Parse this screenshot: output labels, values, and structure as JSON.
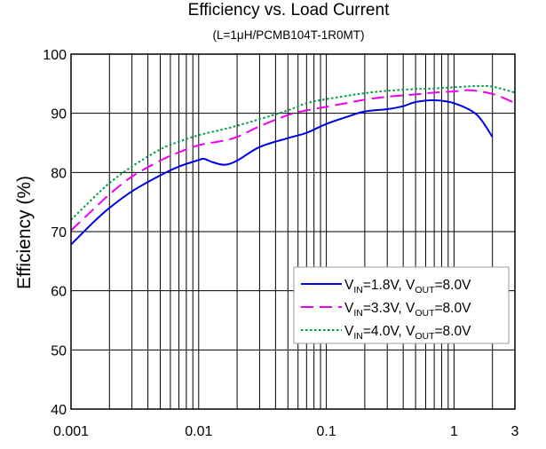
{
  "chart_data": {
    "type": "line",
    "title": "Efficiency vs. Load Current",
    "subtitle": "(L=1μH/PCMB104T-1R0MT)",
    "xlabel": "",
    "ylabel": "Efficiency (%)",
    "x_scale": "log",
    "xlim": [
      0.001,
      3
    ],
    "ylim": [
      40,
      100
    ],
    "grid": true,
    "x_ticks": [
      {
        "value": 0.001,
        "label": "0.001"
      },
      {
        "value": 0.01,
        "label": "0.01"
      },
      {
        "value": 0.1,
        "label": "0.1"
      },
      {
        "value": 1,
        "label": "1"
      },
      {
        "value": 3,
        "label": "3"
      }
    ],
    "y_ticks": [
      {
        "value": 40,
        "label": "40"
      },
      {
        "value": 50,
        "label": "50"
      },
      {
        "value": 60,
        "label": "60"
      },
      {
        "value": 70,
        "label": "70"
      },
      {
        "value": 80,
        "label": "80"
      },
      {
        "value": 90,
        "label": "90"
      },
      {
        "value": 100,
        "label": "100"
      }
    ],
    "legend_position": "bottom-right",
    "series": [
      {
        "name": "VIN=1.8V, VOUT=8.0V",
        "legend": {
          "a": "V",
          "a_sub": "IN",
          "b": "=1.8V, V",
          "b_sub": "OUT",
          "c": "=8.0V"
        },
        "color": "#0000e6",
        "style": "solid",
        "points": [
          [
            0.001,
            67.8
          ],
          [
            0.0015,
            71.6
          ],
          [
            0.002,
            74.0
          ],
          [
            0.003,
            76.8
          ],
          [
            0.005,
            79.5
          ],
          [
            0.007,
            81.0
          ],
          [
            0.01,
            82.1
          ],
          [
            0.011,
            82.3
          ],
          [
            0.013,
            81.7
          ],
          [
            0.016,
            81.3
          ],
          [
            0.02,
            82.0
          ],
          [
            0.03,
            84.3
          ],
          [
            0.05,
            85.8
          ],
          [
            0.07,
            86.7
          ],
          [
            0.1,
            88.2
          ],
          [
            0.15,
            89.5
          ],
          [
            0.2,
            90.3
          ],
          [
            0.3,
            90.7
          ],
          [
            0.4,
            91.2
          ],
          [
            0.5,
            91.9
          ],
          [
            0.7,
            92.2
          ],
          [
            1.0,
            91.7
          ],
          [
            1.5,
            89.8
          ],
          [
            2.0,
            86.0
          ]
        ]
      },
      {
        "name": "VIN=3.3V, VOUT=8.0V",
        "legend": {
          "a": "V",
          "a_sub": "IN",
          "b": "=3.3V, V",
          "b_sub": "OUT",
          "c": "=8.0V"
        },
        "color": "#ee00ee",
        "style": "dashed",
        "points": [
          [
            0.001,
            70.2
          ],
          [
            0.0015,
            73.8
          ],
          [
            0.002,
            76.3
          ],
          [
            0.003,
            79.3
          ],
          [
            0.005,
            82.0
          ],
          [
            0.007,
            83.4
          ],
          [
            0.01,
            84.6
          ],
          [
            0.015,
            85.3
          ],
          [
            0.02,
            86.0
          ],
          [
            0.03,
            87.8
          ],
          [
            0.05,
            89.7
          ],
          [
            0.07,
            90.5
          ],
          [
            0.1,
            91.1
          ],
          [
            0.15,
            91.8
          ],
          [
            0.2,
            92.3
          ],
          [
            0.3,
            92.8
          ],
          [
            0.5,
            93.2
          ],
          [
            0.7,
            93.5
          ],
          [
            1.0,
            93.7
          ],
          [
            1.3,
            93.9
          ],
          [
            1.7,
            93.6
          ],
          [
            2.2,
            93.0
          ],
          [
            3.0,
            91.7
          ]
        ]
      },
      {
        "name": "VIN=4.0V, VOUT=8.0V",
        "legend": {
          "a": "V",
          "a_sub": "IN",
          "b": "=4.0V, V",
          "b_sub": "OUT",
          "c": "=8.0V"
        },
        "color": "#009e48",
        "style": "dotted",
        "points": [
          [
            0.001,
            72.0
          ],
          [
            0.0015,
            75.7
          ],
          [
            0.002,
            78.2
          ],
          [
            0.003,
            81.0
          ],
          [
            0.005,
            83.9
          ],
          [
            0.007,
            85.2
          ],
          [
            0.01,
            86.3
          ],
          [
            0.015,
            87.2
          ],
          [
            0.02,
            87.9
          ],
          [
            0.03,
            89.0
          ],
          [
            0.05,
            90.5
          ],
          [
            0.07,
            91.7
          ],
          [
            0.1,
            92.4
          ],
          [
            0.15,
            93.0
          ],
          [
            0.2,
            93.4
          ],
          [
            0.3,
            93.8
          ],
          [
            0.5,
            94.1
          ],
          [
            0.7,
            94.2
          ],
          [
            1.0,
            94.4
          ],
          [
            1.5,
            94.6
          ],
          [
            2.0,
            94.5
          ],
          [
            3.0,
            93.5
          ]
        ]
      }
    ]
  }
}
